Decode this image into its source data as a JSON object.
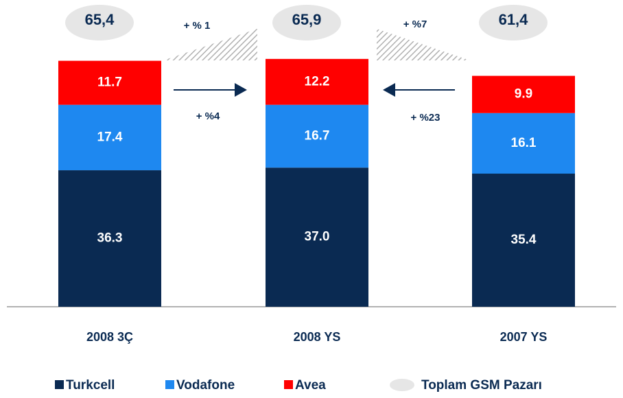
{
  "chart_data": {
    "type": "stacked_bar",
    "categories": [
      "2008 3Ç",
      "2008 YS",
      "2007 YS"
    ],
    "series": [
      {
        "name": "Turkcell",
        "color": "#0a2a52",
        "values": [
          36.3,
          37.0,
          35.4
        ],
        "value_labels": [
          "36.3",
          "37.0",
          "35.4"
        ]
      },
      {
        "name": "Vodafone",
        "color": "#1e88f0",
        "values": [
          17.4,
          16.7,
          16.1
        ],
        "value_labels": [
          "17.4",
          "16.7",
          "16.1"
        ]
      },
      {
        "name": "Avea",
        "color": "#ff0000",
        "values": [
          11.7,
          12.2,
          9.9
        ],
        "value_labels": [
          "11.7",
          "12.2",
          "9.9"
        ]
      }
    ],
    "totals": [
      65.4,
      65.9,
      61.4
    ],
    "total_labels": [
      "65,4",
      "65,9",
      "61,4"
    ],
    "totals_legend": "Toplam GSM Pazarı",
    "totals_color": "#e6e6e6",
    "annotations": [
      "+ % 1",
      "+ %7",
      "+ %4",
      "+ %23"
    ]
  }
}
